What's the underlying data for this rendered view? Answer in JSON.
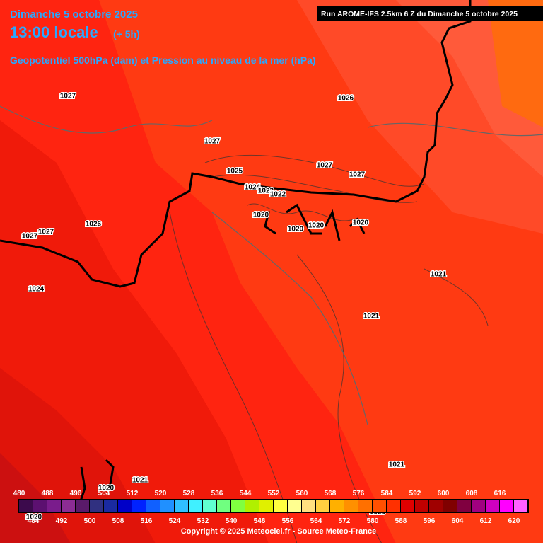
{
  "header": {
    "date_line": "Dimanche 5 octobre 2025",
    "time_line": "13:00 locale",
    "lead": "(+ 5h)",
    "subtitle": "Geopotentiel 500hPa (dam) et Pression au niveau de la mer (hPa)",
    "run": "Run AROME-IFS 2.5km 6 Z du Dimanche 5 octobre 2025"
  },
  "contour_labels": [
    1027,
    1026,
    1027,
    1027,
    1027,
    1025,
    1024,
    1023,
    1022,
    1020,
    1020,
    1020,
    1020,
    1026,
    1027,
    1027,
    1024,
    1021,
    1021,
    1021,
    1021,
    1020,
    1020,
    1020
  ],
  "legend": {
    "values": [
      480,
      484,
      488,
      492,
      496,
      500,
      504,
      508,
      512,
      516,
      520,
      524,
      528,
      532,
      536,
      540,
      544,
      548,
      552,
      556,
      560,
      564,
      568,
      572,
      576,
      580,
      584,
      588,
      592,
      596,
      600,
      604,
      608,
      612,
      616,
      620
    ],
    "colors": [
      "#3c0a4c",
      "#5c1070",
      "#7a1c8c",
      "#8c2c94",
      "#5a1a6a",
      "#303080",
      "#1a2aa0",
      "#0000c8",
      "#0022ff",
      "#1060ff",
      "#2090ff",
      "#30c0ff",
      "#40f0ff",
      "#60ffd0",
      "#70ff80",
      "#80ff40",
      "#b0f000",
      "#e0f000",
      "#ffff40",
      "#ffff90",
      "#ffe080",
      "#ffd040",
      "#ffb000",
      "#ff9000",
      "#ff7000",
      "#ff5000",
      "#ff3000",
      "#e00000",
      "#c00000",
      "#a00000",
      "#800000",
      "#800040",
      "#a00080",
      "#d000c0",
      "#ff00ff",
      "#ff60ff"
    ]
  },
  "copyright": "Copyright © 2025 Meteociel.fr - Source Meteo-France"
}
